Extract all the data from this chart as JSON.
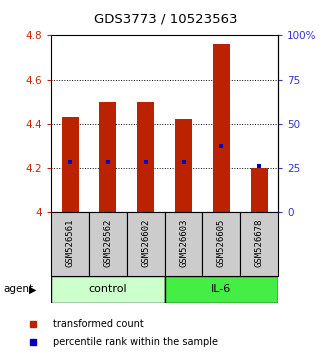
{
  "title": "GDS3773 / 10523563",
  "samples": [
    "GSM526561",
    "GSM526562",
    "GSM526602",
    "GSM526603",
    "GSM526605",
    "GSM526678"
  ],
  "bar_values": [
    4.43,
    4.5,
    4.5,
    4.42,
    4.76,
    4.2
  ],
  "bar_bottom": 4.0,
  "percentile_values": [
    4.23,
    4.23,
    4.23,
    4.23,
    4.3,
    4.21
  ],
  "ylim": [
    4.0,
    4.8
  ],
  "yticks_left": [
    4.0,
    4.2,
    4.4,
    4.6,
    4.8
  ],
  "ytick_labels_left": [
    "4",
    "4.2",
    "4.4",
    "4.6",
    "4.8"
  ],
  "yticks_right": [
    0,
    25,
    50,
    75,
    100
  ],
  "ytick_labels_right": [
    "0",
    "25",
    "50",
    "75",
    "100%"
  ],
  "bar_color": "#bb2200",
  "percentile_color": "#0000bb",
  "bar_width": 0.45,
  "left_tick_color": "#cc2200",
  "right_tick_color": "#3333cc",
  "sample_box_color": "#cccccc",
  "control_color": "#ccffcc",
  "il6_color": "#44ee44",
  "legend_red_label": "transformed count",
  "legend_blue_label": "percentile rank within the sample",
  "agent_label": "agent"
}
